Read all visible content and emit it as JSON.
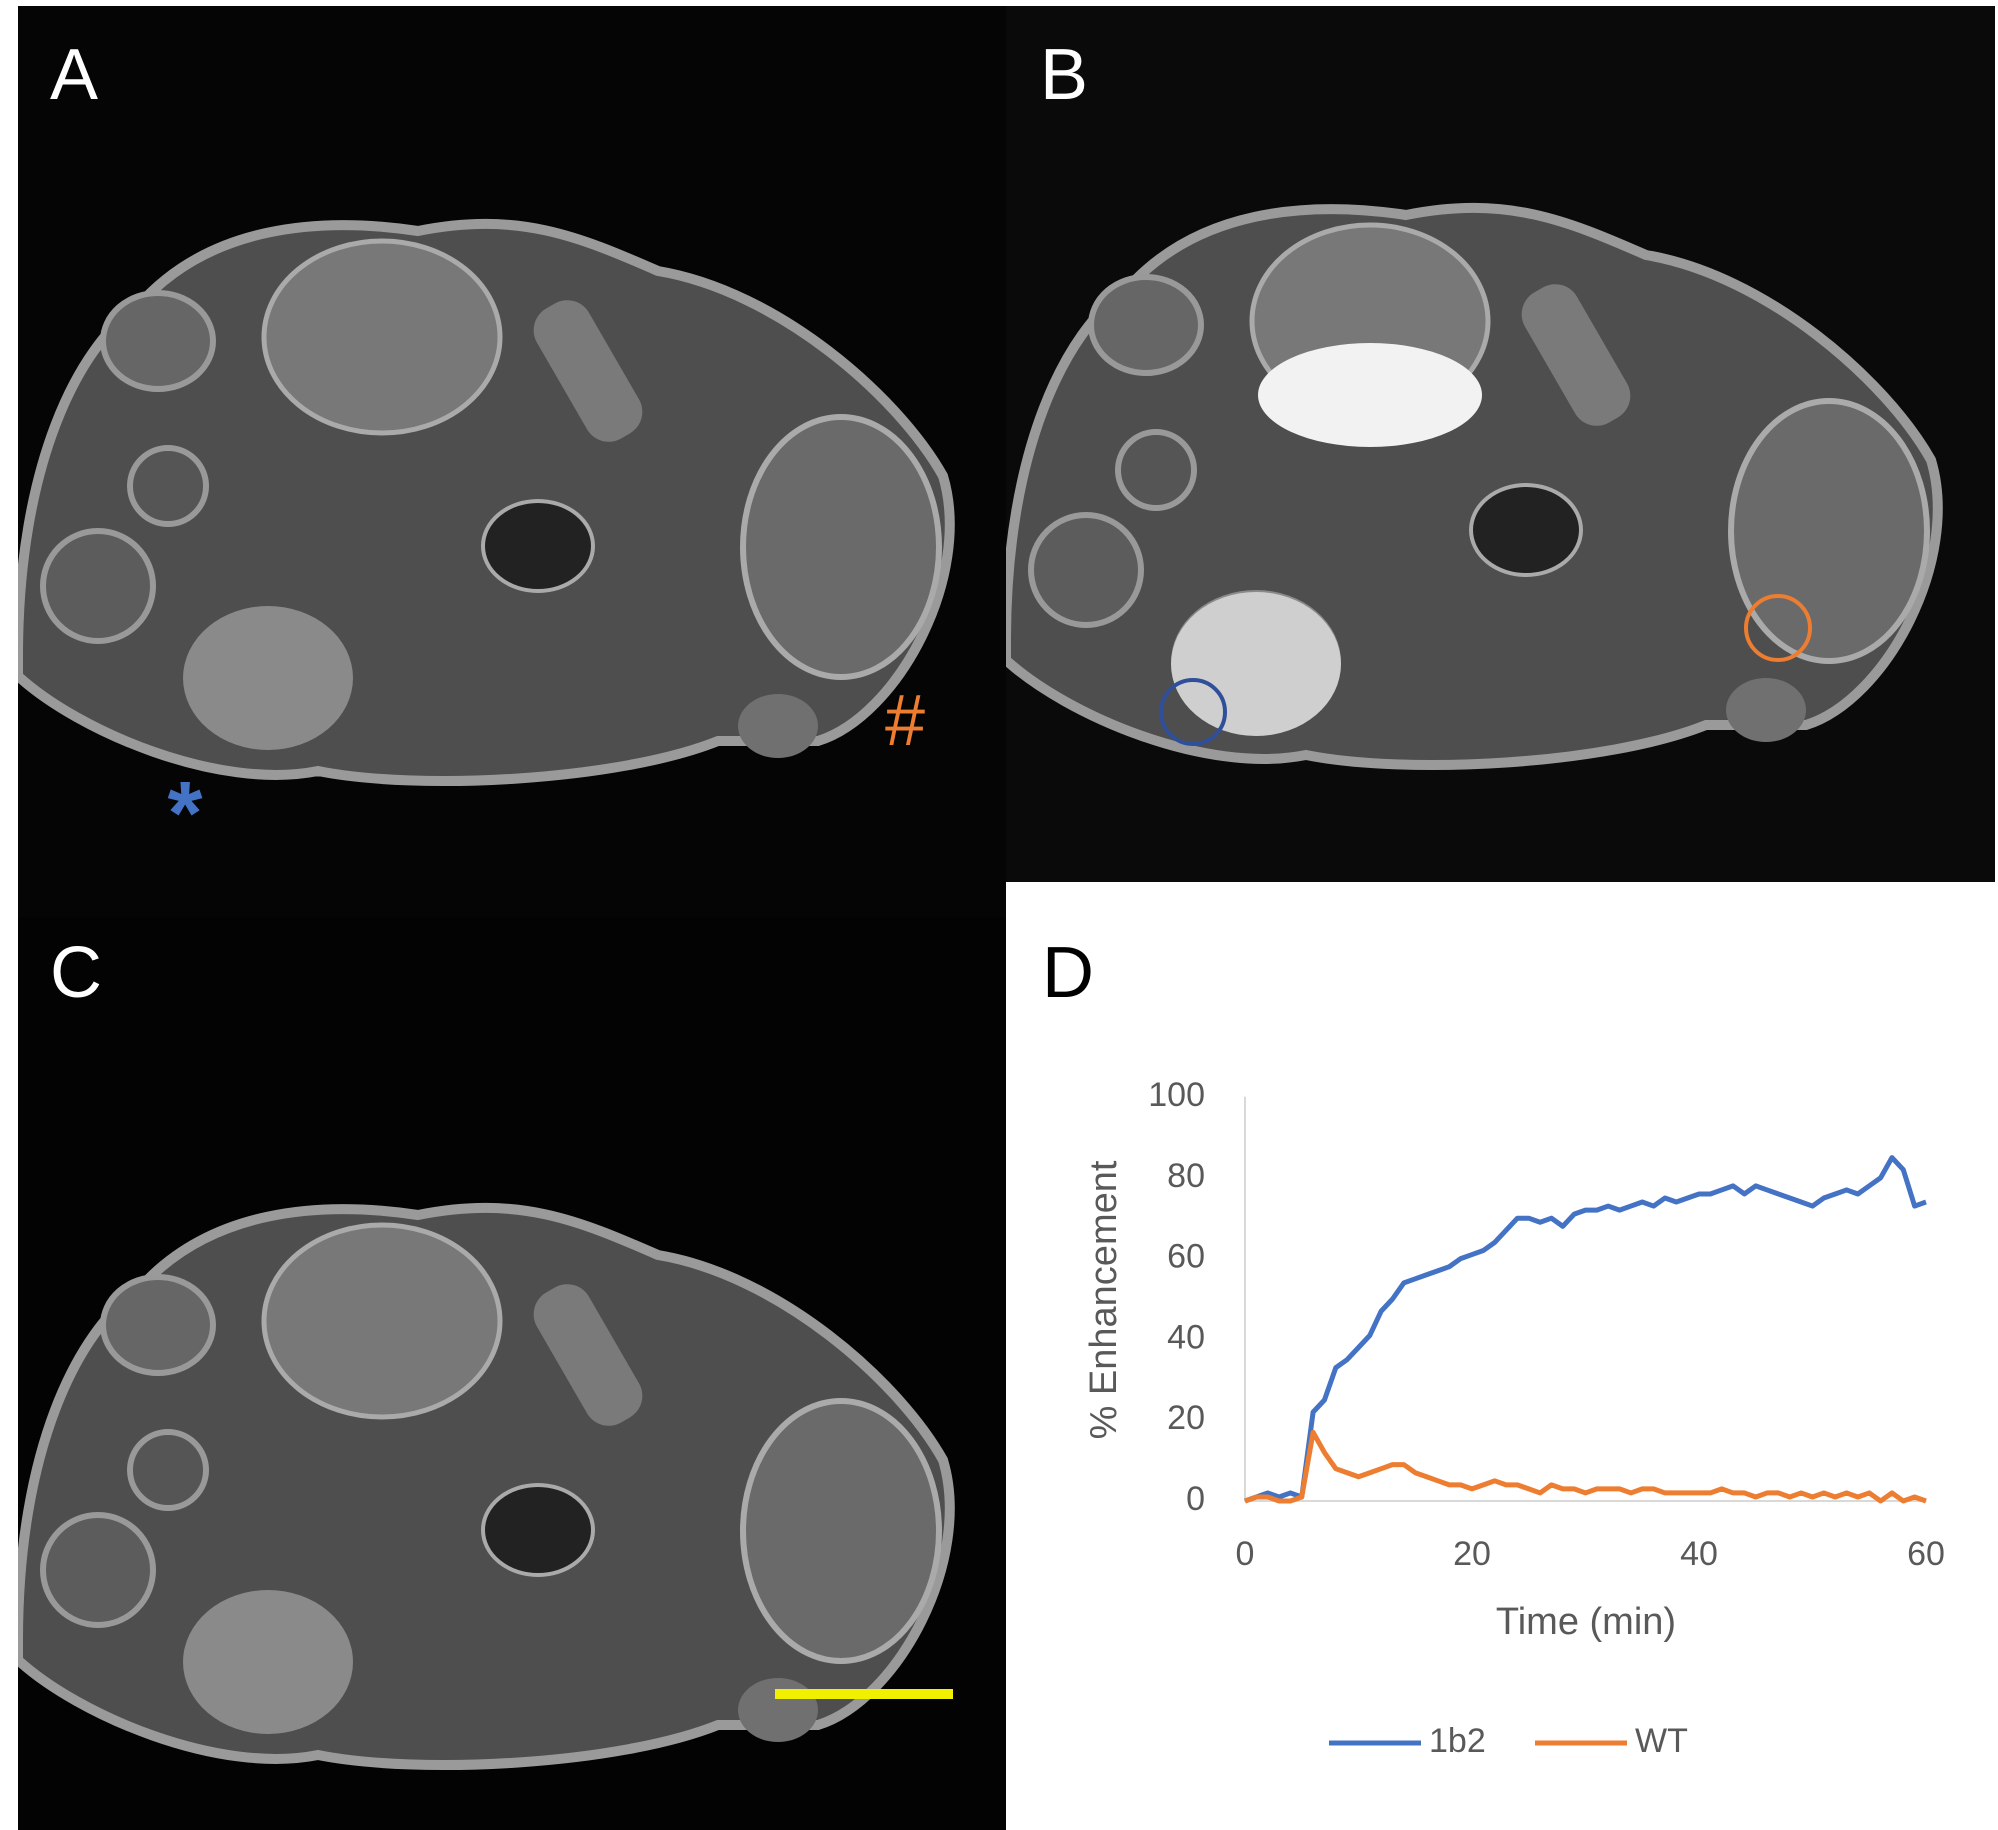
{
  "panel_labels": [
    "A",
    "B",
    "C",
    "D"
  ],
  "markers": [
    "*",
    "#"
  ],
  "chart_data": {
    "type": "line",
    "xlabel": "Time (min)",
    "ylabel": "% Enhancement",
    "x": [
      0,
      1,
      2,
      3,
      4,
      5,
      6,
      7,
      8,
      9,
      10,
      11,
      12,
      13,
      14,
      15,
      16,
      17,
      18,
      19,
      20,
      21,
      22,
      23,
      24,
      25,
      26,
      27,
      28,
      29,
      30,
      31,
      32,
      33,
      34,
      35,
      36,
      37,
      38,
      39,
      40,
      41,
      42,
      43,
      44,
      45,
      46,
      47,
      48,
      49,
      50,
      51,
      52,
      53,
      54,
      55,
      56,
      57,
      58,
      59,
      60
    ],
    "series": [
      {
        "name": "1b2",
        "color": "#4472c4",
        "values": [
          0,
          1,
          2,
          1,
          2,
          1,
          22,
          25,
          33,
          35,
          38,
          41,
          47,
          50,
          54,
          55,
          56,
          57,
          58,
          60,
          61,
          62,
          64,
          67,
          70,
          70,
          69,
          70,
          68,
          71,
          72,
          72,
          73,
          72,
          73,
          74,
          73,
          75,
          74,
          75,
          76,
          76,
          77,
          78,
          76,
          78,
          77,
          76,
          75,
          74,
          73,
          75,
          76,
          77,
          76,
          78,
          80,
          85,
          82,
          73,
          74
        ]
      },
      {
        "name": "WT",
        "color": "#ed7d31",
        "values": [
          0,
          1,
          1,
          0,
          0,
          1,
          17,
          12,
          8,
          7,
          6,
          7,
          8,
          9,
          9,
          7,
          6,
          5,
          4,
          4,
          3,
          4,
          5,
          4,
          4,
          3,
          2,
          4,
          3,
          3,
          2,
          3,
          3,
          3,
          2,
          3,
          3,
          2,
          2,
          2,
          2,
          2,
          3,
          2,
          2,
          1,
          2,
          2,
          1,
          2,
          1,
          2,
          1,
          2,
          1,
          2,
          0,
          2,
          0,
          1,
          0
        ]
      }
    ],
    "xlim": [
      0,
      60
    ],
    "xticks": [
      0,
      20,
      40,
      60
    ],
    "ylim": [
      0,
      100
    ],
    "yticks": [
      0,
      20,
      40,
      60,
      80,
      100
    ],
    "legend": "bottom"
  }
}
